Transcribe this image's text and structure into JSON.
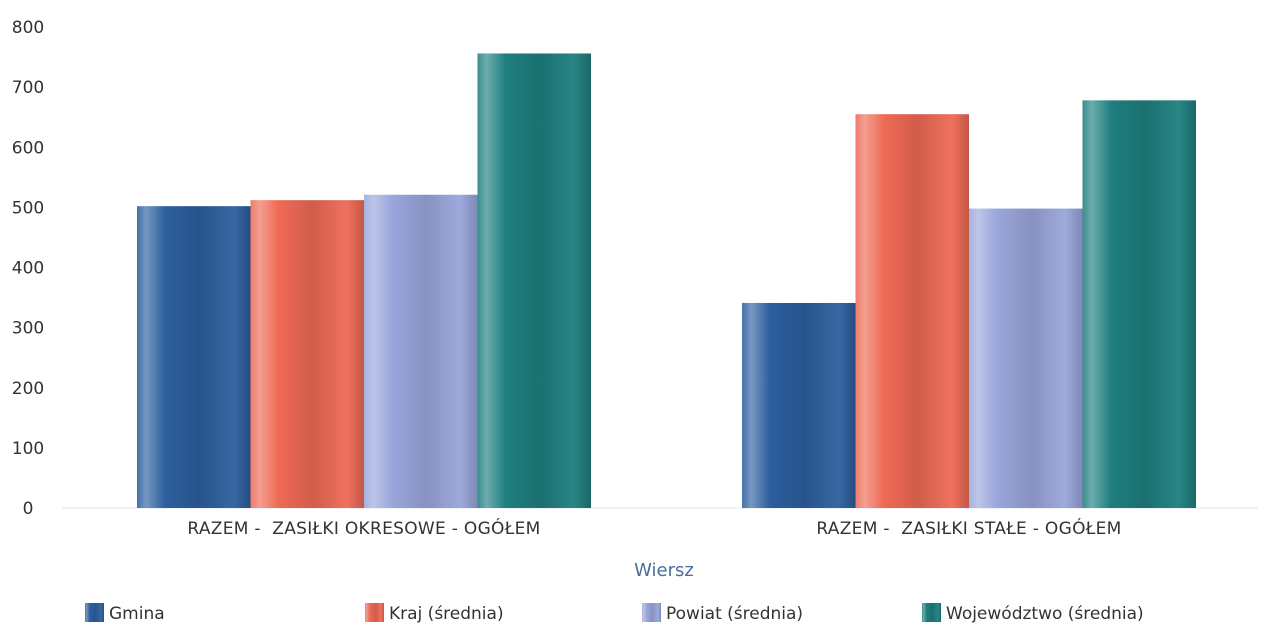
{
  "chart_data": {
    "type": "bar",
    "title": "",
    "xlabel": "Wiersz",
    "ylabel": "",
    "ylim": [
      0,
      800
    ],
    "yticks": [
      0,
      100,
      200,
      300,
      400,
      500,
      600,
      700,
      800
    ],
    "grid": false,
    "legend_position": "bottom",
    "categories": [
      "RAZEM -  ZASIŁKI OKRESOWE - OGÓŁEM",
      "RAZEM -  ZASIŁKI STAŁE - OGÓŁEM"
    ],
    "series": [
      {
        "name": "Gmina",
        "color": "#2c5f9e",
        "values": [
          502,
          341
        ]
      },
      {
        "name": "Kraj (średnia)",
        "color": "#ee6a55",
        "values": [
          512,
          655
        ]
      },
      {
        "name": "Powiat (średnia)",
        "color": "#9aa6db",
        "values": [
          521,
          498
        ]
      },
      {
        "name": "Województwo (średnia)",
        "color": "#1f7f7f",
        "values": [
          756,
          678
        ]
      }
    ]
  }
}
